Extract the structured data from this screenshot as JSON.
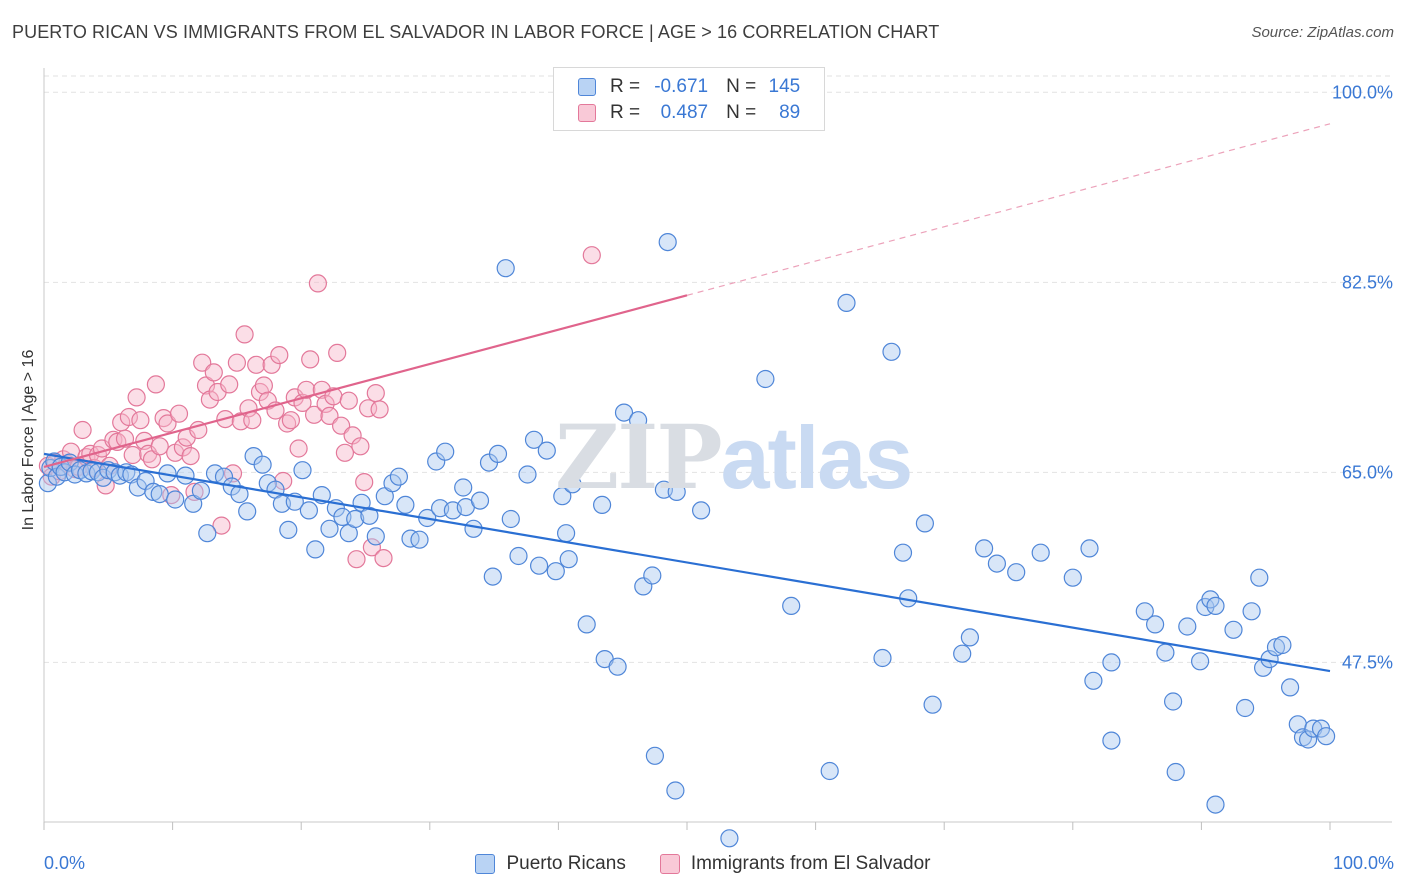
{
  "title": "PUERTO RICAN VS IMMIGRANTS FROM EL SALVADOR IN LABOR FORCE | AGE > 16 CORRELATION CHART",
  "source": "Source: ZipAtlas.com",
  "watermark": {
    "zip": "ZIP",
    "atlas": "atlas"
  },
  "legend_top": [
    {
      "r_label": "R =",
      "r_value": "-0.671",
      "n_label": "N =",
      "n_value": "145"
    },
    {
      "r_label": "R =",
      "r_value": "0.487",
      "n_label": "N =",
      "n_value": "89"
    }
  ],
  "x_tick_labels": {
    "left": "0.0%",
    "right": "100.0%"
  },
  "colors": {
    "blue_fill": "#a9c8f0",
    "blue_stroke": "#4f86d8",
    "blue_line": "#2a6fd3",
    "pink_fill": "#f6b6c9",
    "pink_stroke": "#e3789a",
    "pink_line": "#e0648c",
    "grid": "#e2e2e2",
    "axis_text": "#3a78d4"
  },
  "chart_data": {
    "type": "scatter",
    "title": "PUERTO RICAN VS IMMIGRANTS FROM EL SALVADOR IN LABOR FORCE | AGE > 16 CORRELATION CHART",
    "xlabel": "",
    "ylabel": "In Labor Force | Age > 16",
    "xlim": [
      0,
      100
    ],
    "ylim": [
      32.8,
      101.5
    ],
    "y_ticks": [
      {
        "value": 47.5,
        "label": "47.5%"
      },
      {
        "value": 65.0,
        "label": "65.0%"
      },
      {
        "value": 82.5,
        "label": "82.5%"
      },
      {
        "value": 100.0,
        "label": "100.0%"
      }
    ],
    "x_tick_count": 11,
    "grid": true,
    "legend_position": "top-center",
    "series": [
      {
        "name": "Puerto Ricans",
        "color": "#4f86d8",
        "r": -0.671,
        "n": 145,
        "trend": {
          "x0": 0,
          "y0": 66.7,
          "x1": 100,
          "y1": 46.7
        },
        "points": [
          [
            0.3,
            64.0
          ],
          [
            0.5,
            65.4
          ],
          [
            0.8,
            66.0
          ],
          [
            1.0,
            64.6
          ],
          [
            1.3,
            65.5
          ],
          [
            1.6,
            65.0
          ],
          [
            2.0,
            65.9
          ],
          [
            2.4,
            64.8
          ],
          [
            2.8,
            65.2
          ],
          [
            3.3,
            64.9
          ],
          [
            3.7,
            65.1
          ],
          [
            4.2,
            65.0
          ],
          [
            4.6,
            64.5
          ],
          [
            5.0,
            65.2
          ],
          [
            5.5,
            65.0
          ],
          [
            5.9,
            64.7
          ],
          [
            6.4,
            65.0
          ],
          [
            6.8,
            64.8
          ],
          [
            7.3,
            63.6
          ],
          [
            7.9,
            64.2
          ],
          [
            8.5,
            63.2
          ],
          [
            9.0,
            63.0
          ],
          [
            9.6,
            64.9
          ],
          [
            10.2,
            62.5
          ],
          [
            11.0,
            64.7
          ],
          [
            11.6,
            62.1
          ],
          [
            12.2,
            63.3
          ],
          [
            12.7,
            59.4
          ],
          [
            13.3,
            64.9
          ],
          [
            14.0,
            64.6
          ],
          [
            14.6,
            63.7
          ],
          [
            15.2,
            63.0
          ],
          [
            15.8,
            61.4
          ],
          [
            16.3,
            66.5
          ],
          [
            17.0,
            65.7
          ],
          [
            17.4,
            64.0
          ],
          [
            18.0,
            63.4
          ],
          [
            18.5,
            62.1
          ],
          [
            19.0,
            59.7
          ],
          [
            19.5,
            62.3
          ],
          [
            20.1,
            65.2
          ],
          [
            20.6,
            61.5
          ],
          [
            21.1,
            57.9
          ],
          [
            21.6,
            62.9
          ],
          [
            22.2,
            59.8
          ],
          [
            22.7,
            61.7
          ],
          [
            23.2,
            60.9
          ],
          [
            23.7,
            59.4
          ],
          [
            24.2,
            60.7
          ],
          [
            24.7,
            62.2
          ],
          [
            25.3,
            61.0
          ],
          [
            25.8,
            59.1
          ],
          [
            26.5,
            62.8
          ],
          [
            27.1,
            64.0
          ],
          [
            27.6,
            64.6
          ],
          [
            28.1,
            62.0
          ],
          [
            28.5,
            58.9
          ],
          [
            29.2,
            58.8
          ],
          [
            29.8,
            60.8
          ],
          [
            30.5,
            66.0
          ],
          [
            30.8,
            61.7
          ],
          [
            31.2,
            66.9
          ],
          [
            31.8,
            61.5
          ],
          [
            32.6,
            63.6
          ],
          [
            32.8,
            61.8
          ],
          [
            33.4,
            59.8
          ],
          [
            33.9,
            62.4
          ],
          [
            34.6,
            65.9
          ],
          [
            34.9,
            55.4
          ],
          [
            35.3,
            66.7
          ],
          [
            35.9,
            83.8
          ],
          [
            36.3,
            60.7
          ],
          [
            36.9,
            57.3
          ],
          [
            37.6,
            64.8
          ],
          [
            38.1,
            68.0
          ],
          [
            38.5,
            56.4
          ],
          [
            39.1,
            67.0
          ],
          [
            39.8,
            55.9
          ],
          [
            40.3,
            62.8
          ],
          [
            40.6,
            59.4
          ],
          [
            40.8,
            57.0
          ],
          [
            41.1,
            63.9
          ],
          [
            42.2,
            51.0
          ],
          [
            43.4,
            62.0
          ],
          [
            43.6,
            47.8
          ],
          [
            44.6,
            47.1
          ],
          [
            45.1,
            70.5
          ],
          [
            46.2,
            69.8
          ],
          [
            46.6,
            54.5
          ],
          [
            47.3,
            55.5
          ],
          [
            47.5,
            38.9
          ],
          [
            48.2,
            63.4
          ],
          [
            48.5,
            86.2
          ],
          [
            49.1,
            35.7
          ],
          [
            49.2,
            63.2
          ],
          [
            51.1,
            61.5
          ],
          [
            53.3,
            31.3
          ],
          [
            56.1,
            73.6
          ],
          [
            58.1,
            52.7
          ],
          [
            61.1,
            37.5
          ],
          [
            62.4,
            80.6
          ],
          [
            65.2,
            47.9
          ],
          [
            65.9,
            76.1
          ],
          [
            66.8,
            57.6
          ],
          [
            67.2,
            53.4
          ],
          [
            68.5,
            60.3
          ],
          [
            69.1,
            43.6
          ],
          [
            71.4,
            48.3
          ],
          [
            72.0,
            49.8
          ],
          [
            73.1,
            58.0
          ],
          [
            74.1,
            56.6
          ],
          [
            75.6,
            55.8
          ],
          [
            77.5,
            57.6
          ],
          [
            80.0,
            55.3
          ],
          [
            81.3,
            58.0
          ],
          [
            81.6,
            45.8
          ],
          [
            83.0,
            47.5
          ],
          [
            83.0,
            40.3
          ],
          [
            85.6,
            52.2
          ],
          [
            86.4,
            51.0
          ],
          [
            87.2,
            48.4
          ],
          [
            87.8,
            43.9
          ],
          [
            88.0,
            37.4
          ],
          [
            88.9,
            50.8
          ],
          [
            89.9,
            47.6
          ],
          [
            90.3,
            52.6
          ],
          [
            90.7,
            53.3
          ],
          [
            91.1,
            52.7
          ],
          [
            91.1,
            34.4
          ],
          [
            92.5,
            50.5
          ],
          [
            93.4,
            43.3
          ],
          [
            93.9,
            52.2
          ],
          [
            94.5,
            55.3
          ],
          [
            94.8,
            47.0
          ],
          [
            95.3,
            47.8
          ],
          [
            95.8,
            48.9
          ],
          [
            96.3,
            49.1
          ],
          [
            96.9,
            45.2
          ],
          [
            97.5,
            41.8
          ],
          [
            97.9,
            40.6
          ],
          [
            98.3,
            40.4
          ],
          [
            98.7,
            41.4
          ],
          [
            99.3,
            41.4
          ],
          [
            99.7,
            40.7
          ]
        ]
      },
      {
        "name": "Immigrants from El Salvador",
        "color": "#e3789a",
        "r": 0.487,
        "n": 89,
        "trend": {
          "x0": 0,
          "y0": 65.5,
          "x1": 50,
          "y1": 81.3,
          "dash_to_x": 100,
          "dash_to_y": 97.1
        },
        "points": [
          [
            0.3,
            65.6
          ],
          [
            0.6,
            64.6
          ],
          [
            0.9,
            65.9
          ],
          [
            1.2,
            65.1
          ],
          [
            1.5,
            66.2
          ],
          [
            1.8,
            65.8
          ],
          [
            2.1,
            66.9
          ],
          [
            2.4,
            65.3
          ],
          [
            2.7,
            65.5
          ],
          [
            3.0,
            68.9
          ],
          [
            3.3,
            66.4
          ],
          [
            3.6,
            66.7
          ],
          [
            3.9,
            65.4
          ],
          [
            4.2,
            66.6
          ],
          [
            4.5,
            67.2
          ],
          [
            4.8,
            63.8
          ],
          [
            5.1,
            65.6
          ],
          [
            5.4,
            68.0
          ],
          [
            5.7,
            67.8
          ],
          [
            6.0,
            69.6
          ],
          [
            6.3,
            68.1
          ],
          [
            6.6,
            70.1
          ],
          [
            6.9,
            66.6
          ],
          [
            7.2,
            71.9
          ],
          [
            7.5,
            69.8
          ],
          [
            7.8,
            67.9
          ],
          [
            8.1,
            66.7
          ],
          [
            8.4,
            66.2
          ],
          [
            8.7,
            73.1
          ],
          [
            9.0,
            67.4
          ],
          [
            9.3,
            70.0
          ],
          [
            9.6,
            69.5
          ],
          [
            9.9,
            62.9
          ],
          [
            10.2,
            66.8
          ],
          [
            10.5,
            70.4
          ],
          [
            10.8,
            67.3
          ],
          [
            11.1,
            68.2
          ],
          [
            11.4,
            66.5
          ],
          [
            11.7,
            63.2
          ],
          [
            12.0,
            68.9
          ],
          [
            12.3,
            75.1
          ],
          [
            12.6,
            73.0
          ],
          [
            12.9,
            71.7
          ],
          [
            13.2,
            74.2
          ],
          [
            13.5,
            72.4
          ],
          [
            13.8,
            60.1
          ],
          [
            14.1,
            69.9
          ],
          [
            14.4,
            73.1
          ],
          [
            14.7,
            64.9
          ],
          [
            15.0,
            75.1
          ],
          [
            15.3,
            69.7
          ],
          [
            15.6,
            77.7
          ],
          [
            15.9,
            70.9
          ],
          [
            16.2,
            69.8
          ],
          [
            16.5,
            74.9
          ],
          [
            16.8,
            72.4
          ],
          [
            17.1,
            73.0
          ],
          [
            17.4,
            71.6
          ],
          [
            17.7,
            74.9
          ],
          [
            18.0,
            70.7
          ],
          [
            18.3,
            75.8
          ],
          [
            18.6,
            64.2
          ],
          [
            18.9,
            69.5
          ],
          [
            19.2,
            69.8
          ],
          [
            19.5,
            71.9
          ],
          [
            19.8,
            67.2
          ],
          [
            20.1,
            71.4
          ],
          [
            20.4,
            72.6
          ],
          [
            20.7,
            75.4
          ],
          [
            21.0,
            70.3
          ],
          [
            21.3,
            82.4
          ],
          [
            21.6,
            72.6
          ],
          [
            21.9,
            71.3
          ],
          [
            22.2,
            70.2
          ],
          [
            22.5,
            72.0
          ],
          [
            22.8,
            76.0
          ],
          [
            23.1,
            69.3
          ],
          [
            23.4,
            66.8
          ],
          [
            23.7,
            71.6
          ],
          [
            24.0,
            68.4
          ],
          [
            24.3,
            57.0
          ],
          [
            24.6,
            67.4
          ],
          [
            24.9,
            64.1
          ],
          [
            25.2,
            70.9
          ],
          [
            25.5,
            58.1
          ],
          [
            25.8,
            72.3
          ],
          [
            26.1,
            70.8
          ],
          [
            26.4,
            57.1
          ],
          [
            42.6,
            85.0
          ]
        ]
      }
    ]
  }
}
